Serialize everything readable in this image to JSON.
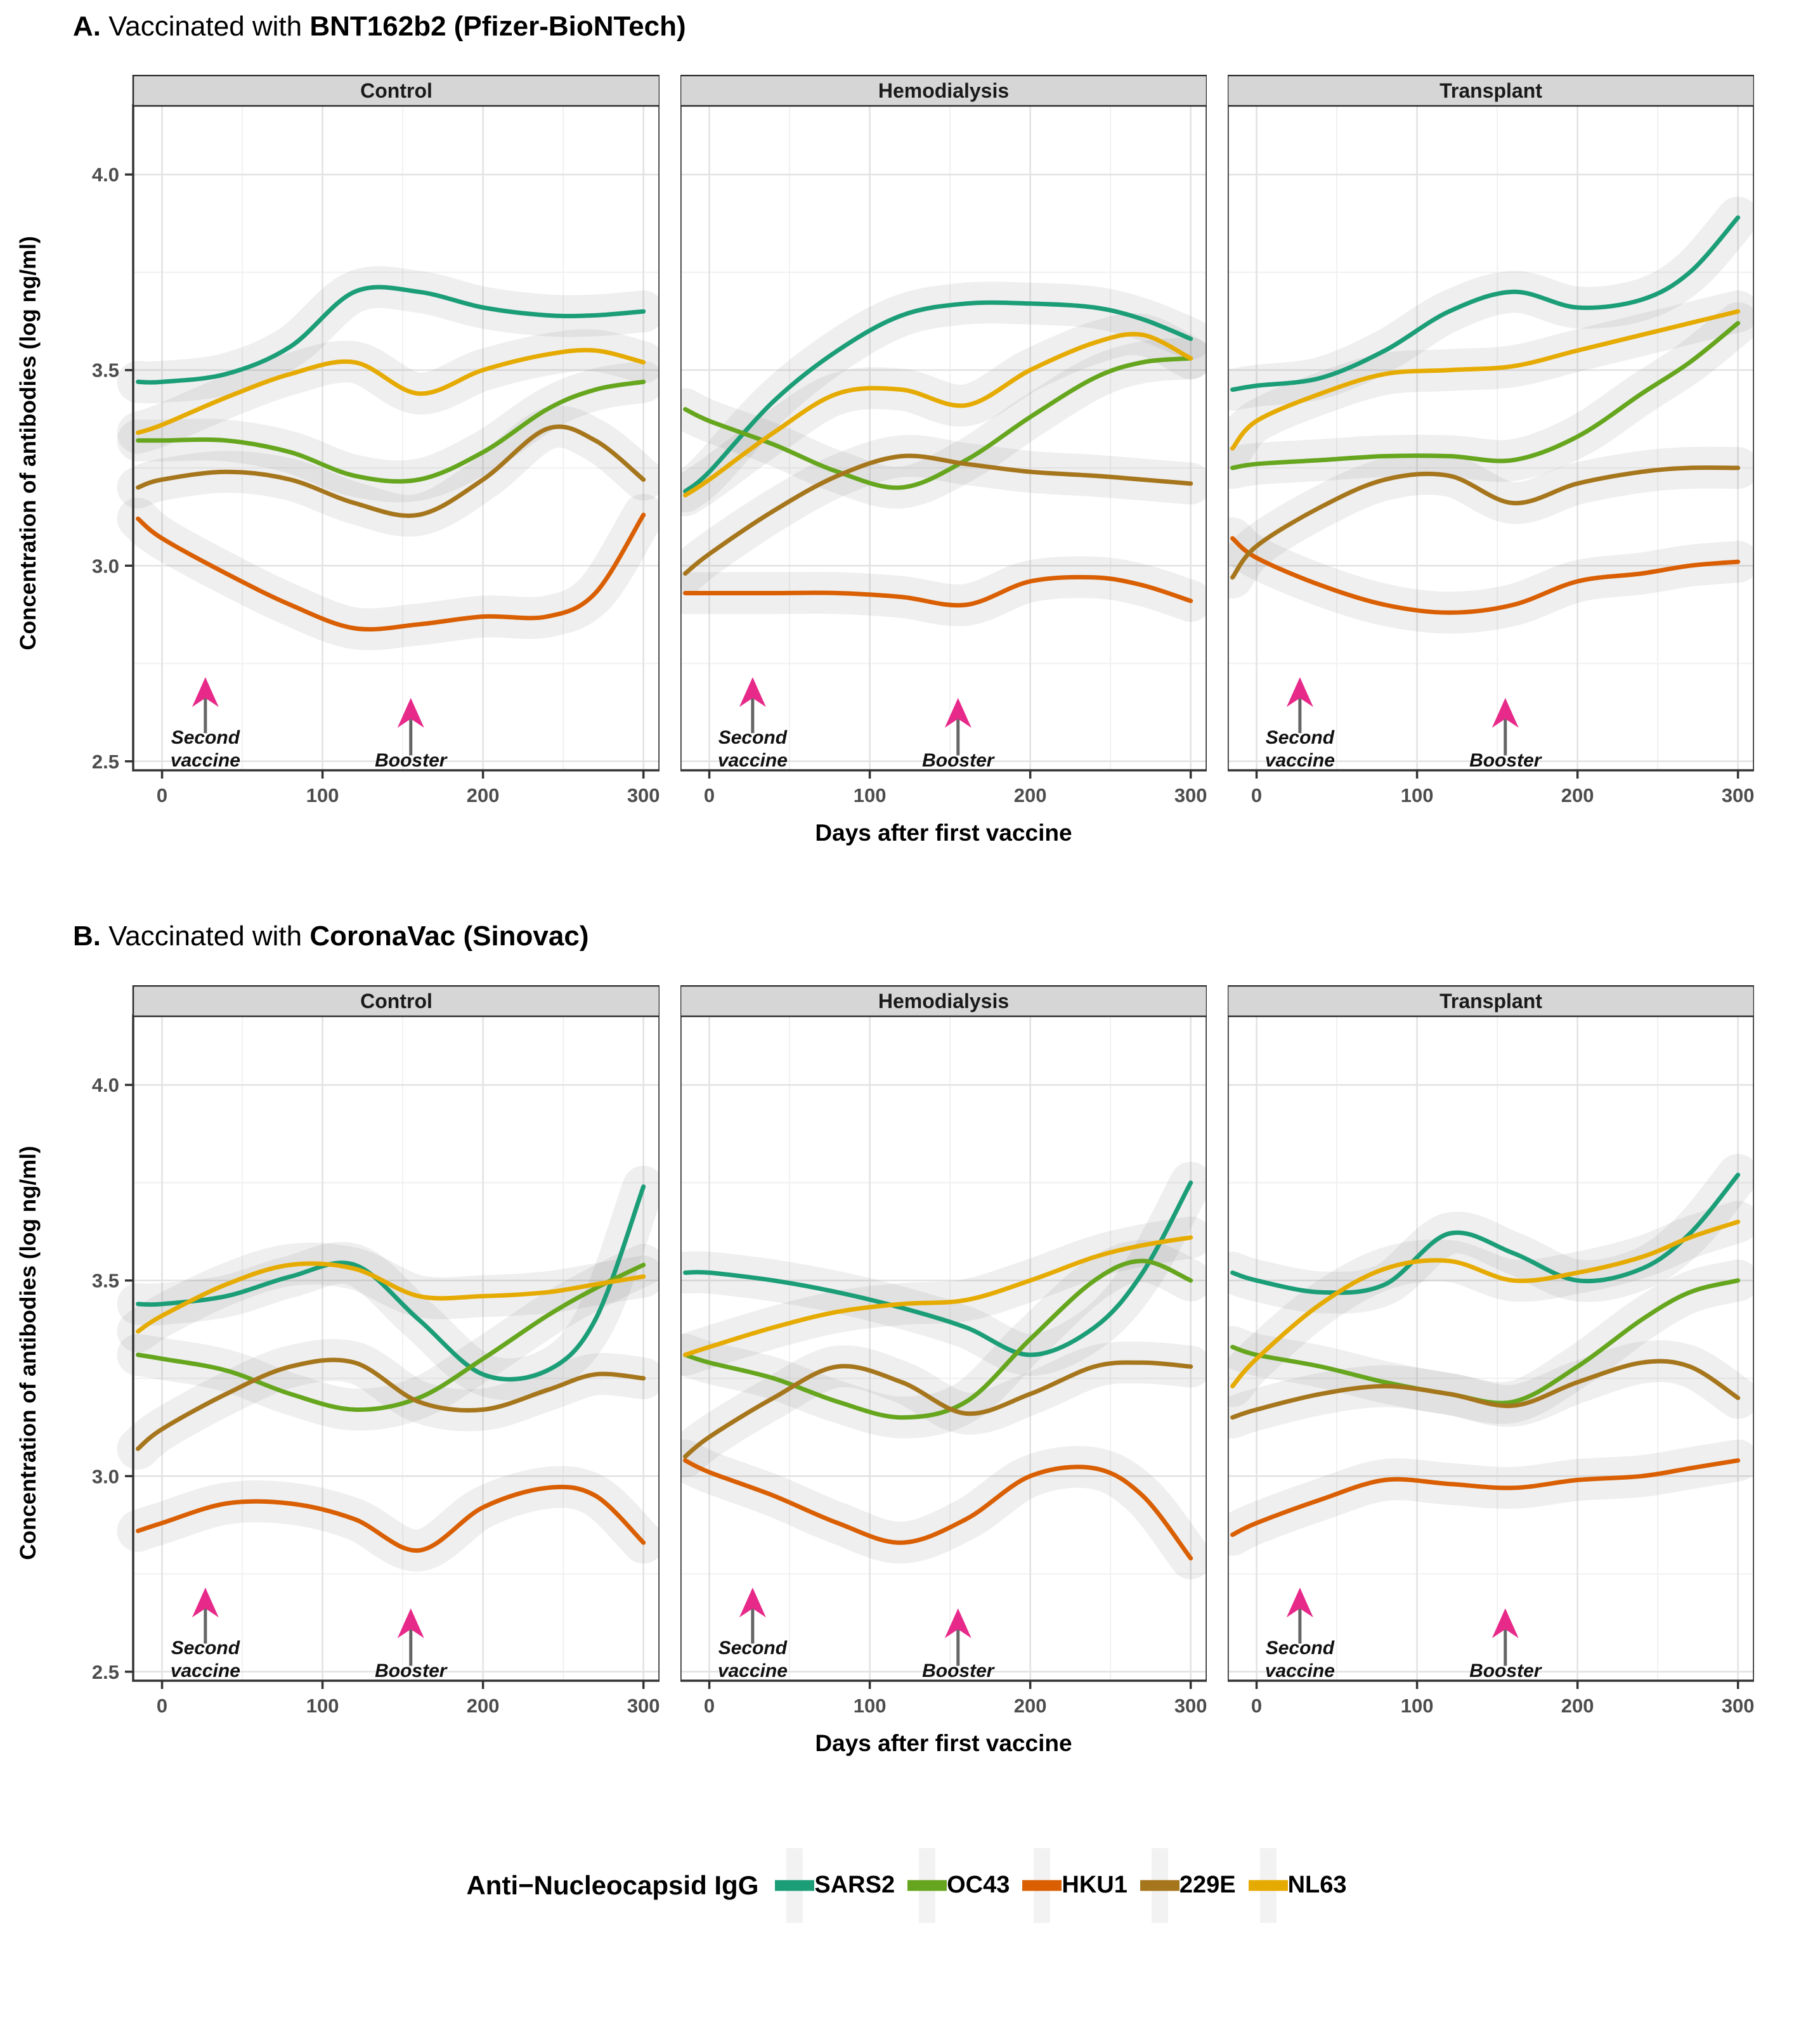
{
  "legend": {
    "title": "Anti−Nucleocapsid IgG",
    "items": [
      {
        "label": "SARS2",
        "color": "#1B9E77"
      },
      {
        "label": "OC43",
        "color": "#66A61E"
      },
      {
        "label": "HKU1",
        "color": "#D95F02"
      },
      {
        "label": "229E",
        "color": "#A6761D"
      },
      {
        "label": "NL63",
        "color": "#E6AB02"
      }
    ]
  },
  "style": {
    "arrow_head_color": "#E7298A",
    "arrow_stem_color": "#666666",
    "band_color": "rgba(125,125,125,0.12)",
    "strip_fill": "#D6D6D6",
    "strip_border": "#2b2b2b",
    "panel_border": "#333333",
    "grid_major": "#E2E2E2",
    "grid_minor": "#F1F1F1",
    "tick_label_color": "#4d4d4d"
  },
  "chart_data": [
    {
      "type": "line",
      "panel": "A",
      "title": "A. Vaccinated with BNT162b2 (Pfizer-BioNTech)",
      "title_parts": {
        "prefix": "A.",
        "mid": " Vaccinated with ",
        "product": "BNT162b2 (Pfizer-BioNTech)"
      },
      "xlabel": "Days after first vaccine",
      "ylabel": "Concentration of antibodies (log ng/ml)",
      "xlim": [
        -18,
        310
      ],
      "ylim": [
        2.477,
        4.177
      ],
      "x_ticks": [
        0,
        100,
        200,
        300
      ],
      "x_minor": [
        50,
        150,
        250
      ],
      "y_ticks": [
        2.5,
        3.0,
        3.5,
        4.0
      ],
      "y_minor": [
        2.75,
        3.25,
        3.75
      ],
      "legend_position": "bottom",
      "grid": true,
      "x": [
        -15,
        0,
        40,
        80,
        120,
        160,
        200,
        240,
        270,
        300
      ],
      "facets": [
        {
          "name": "Control",
          "series": [
            {
              "name": "SARS2",
              "y": [
                3.47,
                3.47,
                3.49,
                3.56,
                3.7,
                3.7,
                3.66,
                3.64,
                3.64,
                3.65
              ]
            },
            {
              "name": "OC43",
              "y": [
                3.32,
                3.32,
                3.32,
                3.29,
                3.23,
                3.22,
                3.29,
                3.4,
                3.45,
                3.47
              ]
            },
            {
              "name": "HKU1",
              "y": [
                3.12,
                3.07,
                2.98,
                2.9,
                2.84,
                2.85,
                2.87,
                2.87,
                2.93,
                3.13
              ]
            },
            {
              "name": "229E",
              "y": [
                3.2,
                3.22,
                3.24,
                3.22,
                3.16,
                3.13,
                3.22,
                3.35,
                3.32,
                3.22
              ]
            },
            {
              "name": "NL63",
              "y": [
                3.34,
                3.36,
                3.43,
                3.49,
                3.52,
                3.44,
                3.5,
                3.54,
                3.55,
                3.52
              ]
            }
          ]
        },
        {
          "name": "Hemodialysis",
          "series": [
            {
              "name": "SARS2",
              "y": [
                3.19,
                3.24,
                3.42,
                3.55,
                3.64,
                3.67,
                3.67,
                3.66,
                3.63,
                3.58
              ]
            },
            {
              "name": "OC43",
              "y": [
                3.4,
                3.37,
                3.31,
                3.24,
                3.2,
                3.27,
                3.38,
                3.48,
                3.52,
                3.53
              ]
            },
            {
              "name": "HKU1",
              "y": [
                2.93,
                2.93,
                2.93,
                2.93,
                2.92,
                2.9,
                2.96,
                2.97,
                2.95,
                2.91
              ]
            },
            {
              "name": "229E",
              "y": [
                2.98,
                3.03,
                3.14,
                3.23,
                3.28,
                3.26,
                3.24,
                3.23,
                3.22,
                3.21
              ]
            },
            {
              "name": "NL63",
              "y": [
                3.18,
                3.22,
                3.34,
                3.44,
                3.45,
                3.41,
                3.5,
                3.57,
                3.59,
                3.53
              ]
            }
          ]
        },
        {
          "name": "Transplant",
          "series": [
            {
              "name": "SARS2",
              "y": [
                3.45,
                3.46,
                3.48,
                3.55,
                3.65,
                3.7,
                3.66,
                3.68,
                3.75,
                3.89
              ]
            },
            {
              "name": "OC43",
              "y": [
                3.25,
                3.26,
                3.27,
                3.28,
                3.28,
                3.27,
                3.33,
                3.44,
                3.52,
                3.62
              ]
            },
            {
              "name": "HKU1",
              "y": [
                3.07,
                3.02,
                2.95,
                2.9,
                2.88,
                2.9,
                2.96,
                2.98,
                3.0,
                3.01
              ]
            },
            {
              "name": "229E",
              "y": [
                2.97,
                3.05,
                3.15,
                3.22,
                3.23,
                3.16,
                3.21,
                3.24,
                3.25,
                3.25
              ]
            },
            {
              "name": "NL63",
              "y": [
                3.3,
                3.37,
                3.44,
                3.49,
                3.5,
                3.51,
                3.55,
                3.59,
                3.62,
                3.65
              ]
            }
          ]
        }
      ],
      "annotations": [
        {
          "label_lines": [
            "Second",
            "vaccine"
          ],
          "day": 27,
          "stem": [
            2.572,
            2.668
          ],
          "tip": 2.715,
          "label_y": [
            2.545,
            2.487
          ]
        },
        {
          "label_lines": [
            "Booster"
          ],
          "day": 155,
          "stem": [
            2.515,
            2.615
          ],
          "tip": 2.662,
          "label_y": [
            2.487
          ]
        }
      ]
    },
    {
      "type": "line",
      "panel": "B",
      "title": "B. Vaccinated with CoronaVac (Sinovac)",
      "title_parts": {
        "prefix": "B.",
        "mid": " Vaccinated with ",
        "product": "CoronaVac (Sinovac)"
      },
      "xlabel": "Days after first vaccine",
      "ylabel": "Concentration of antibodies (log ng/ml)",
      "xlim": [
        -18,
        310
      ],
      "ylim": [
        2.477,
        4.177
      ],
      "x_ticks": [
        0,
        100,
        200,
        300
      ],
      "x_minor": [
        50,
        150,
        250
      ],
      "y_ticks": [
        2.5,
        3.0,
        3.5,
        4.0
      ],
      "y_minor": [
        2.75,
        3.25,
        3.75
      ],
      "legend_position": "bottom",
      "grid": true,
      "x": [
        -15,
        0,
        40,
        80,
        120,
        160,
        200,
        240,
        270,
        300
      ],
      "facets": [
        {
          "name": "Control",
          "series": [
            {
              "name": "SARS2",
              "y": [
                3.44,
                3.44,
                3.46,
                3.51,
                3.54,
                3.4,
                3.26,
                3.27,
                3.4,
                3.74
              ]
            },
            {
              "name": "OC43",
              "y": [
                3.31,
                3.3,
                3.27,
                3.21,
                3.17,
                3.2,
                3.3,
                3.41,
                3.48,
                3.54
              ]
            },
            {
              "name": "HKU1",
              "y": [
                2.86,
                2.88,
                2.93,
                2.93,
                2.89,
                2.81,
                2.92,
                2.97,
                2.95,
                2.83
              ]
            },
            {
              "name": "229E",
              "y": [
                3.07,
                3.12,
                3.21,
                3.28,
                3.29,
                3.19,
                3.17,
                3.22,
                3.26,
                3.25
              ]
            },
            {
              "name": "NL63",
              "y": [
                3.37,
                3.41,
                3.49,
                3.54,
                3.53,
                3.46,
                3.46,
                3.47,
                3.49,
                3.51
              ]
            }
          ]
        },
        {
          "name": "Hemodialysis",
          "series": [
            {
              "name": "SARS2",
              "y": [
                3.52,
                3.52,
                3.5,
                3.47,
                3.43,
                3.38,
                3.31,
                3.38,
                3.52,
                3.75
              ]
            },
            {
              "name": "OC43",
              "y": [
                3.31,
                3.29,
                3.25,
                3.19,
                3.15,
                3.19,
                3.35,
                3.5,
                3.55,
                3.5
              ]
            },
            {
              "name": "HKU1",
              "y": [
                3.04,
                3.01,
                2.95,
                2.88,
                2.83,
                2.89,
                3.0,
                3.02,
                2.95,
                2.79
              ]
            },
            {
              "name": "229E",
              "y": [
                3.05,
                3.1,
                3.2,
                3.28,
                3.24,
                3.16,
                3.21,
                3.28,
                3.29,
                3.28
              ]
            },
            {
              "name": "NL63",
              "y": [
                3.31,
                3.33,
                3.38,
                3.42,
                3.44,
                3.45,
                3.5,
                3.56,
                3.59,
                3.61
              ]
            }
          ]
        },
        {
          "name": "Transplant",
          "series": [
            {
              "name": "SARS2",
              "y": [
                3.52,
                3.5,
                3.47,
                3.49,
                3.62,
                3.57,
                3.5,
                3.53,
                3.62,
                3.77
              ]
            },
            {
              "name": "OC43",
              "y": [
                3.33,
                3.31,
                3.28,
                3.24,
                3.21,
                3.19,
                3.28,
                3.4,
                3.47,
                3.5
              ]
            },
            {
              "name": "HKU1",
              "y": [
                2.85,
                2.88,
                2.94,
                2.99,
                2.98,
                2.97,
                2.99,
                3.0,
                3.02,
                3.04
              ]
            },
            {
              "name": "229E",
              "y": [
                3.15,
                3.17,
                3.21,
                3.23,
                3.21,
                3.18,
                3.24,
                3.29,
                3.28,
                3.2
              ]
            },
            {
              "name": "NL63",
              "y": [
                3.23,
                3.3,
                3.44,
                3.53,
                3.55,
                3.5,
                3.52,
                3.56,
                3.61,
                3.65
              ]
            }
          ]
        }
      ],
      "annotations": [
        {
          "label_lines": [
            "Second",
            "vaccine"
          ],
          "day": 27,
          "stem": [
            2.572,
            2.668
          ],
          "tip": 2.715,
          "label_y": [
            2.545,
            2.487
          ]
        },
        {
          "label_lines": [
            "Booster"
          ],
          "day": 155,
          "stem": [
            2.515,
            2.615
          ],
          "tip": 2.662,
          "label_y": [
            2.487
          ]
        }
      ]
    }
  ]
}
